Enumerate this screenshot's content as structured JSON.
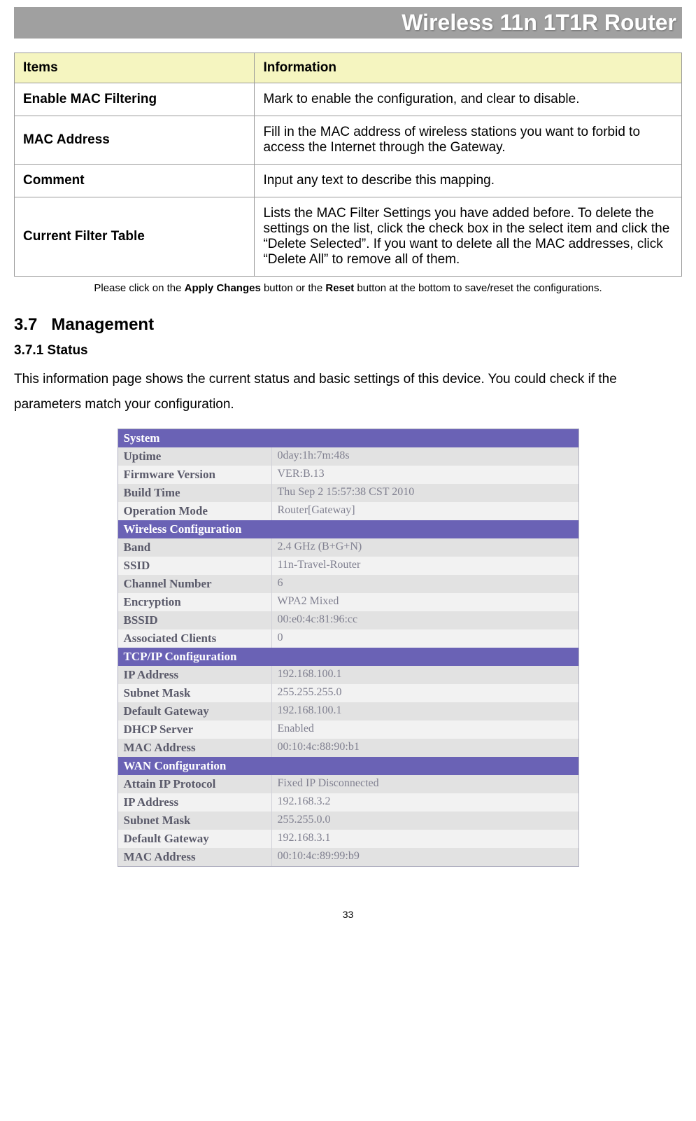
{
  "header": {
    "title": "Wireless 11n 1T1R Router"
  },
  "items_table": {
    "col_items": "Items",
    "col_info": "Information",
    "rows": [
      {
        "item": "Enable MAC Filtering",
        "info": "Mark to enable the configuration, and clear to disable."
      },
      {
        "item": "MAC Address",
        "info": "Fill in the MAC address of wireless stations you want to forbid to access the Internet through the Gateway."
      },
      {
        "item": "Comment",
        "info": "Input any text to describe this mapping."
      },
      {
        "item": "Current Filter Table",
        "info": "Lists the MAC Filter Settings you have added before. To delete the settings on the list, click the check box in the select item and click the “Delete Selected”. If you want to delete all the MAC addresses, click “Delete All” to remove all of them."
      }
    ]
  },
  "footer_note": {
    "pre": "Please click on the ",
    "b1": "Apply Changes",
    "mid": " button or the ",
    "b2": "Reset",
    "post": " button at the bottom to save/reset the configurations."
  },
  "sections": {
    "mgmt_num": "3.7",
    "mgmt_title": "Management",
    "status_num": "3.7.1",
    "status_title": "Status",
    "status_desc": "This information page shows the current status and basic settings of this device. You could check if the parameters match your configuration."
  },
  "status_panel": {
    "groups": [
      {
        "header": "System",
        "rows": [
          {
            "label": "Uptime",
            "value": "0day:1h:7m:48s"
          },
          {
            "label": "Firmware Version",
            "value": "VER:B.13"
          },
          {
            "label": "Build Time",
            "value": "Thu Sep 2 15:57:38 CST 2010"
          },
          {
            "label": "Operation Mode",
            "value": "Router[Gateway]"
          }
        ]
      },
      {
        "header": "Wireless Configuration",
        "rows": [
          {
            "label": "Band",
            "value": "2.4 GHz (B+G+N)"
          },
          {
            "label": "SSID",
            "value": "11n-Travel-Router"
          },
          {
            "label": "Channel Number",
            "value": "6"
          },
          {
            "label": "Encryption",
            "value": "WPA2 Mixed"
          },
          {
            "label": "BSSID",
            "value": "00:e0:4c:81:96:cc"
          },
          {
            "label": "Associated Clients",
            "value": "0"
          }
        ]
      },
      {
        "header": "TCP/IP Configuration",
        "rows": [
          {
            "label": "IP Address",
            "value": "192.168.100.1"
          },
          {
            "label": "Subnet Mask",
            "value": "255.255.255.0"
          },
          {
            "label": "Default Gateway",
            "value": "192.168.100.1"
          },
          {
            "label": "DHCP Server",
            "value": "Enabled"
          },
          {
            "label": "MAC Address",
            "value": "00:10:4c:88:90:b1"
          }
        ]
      },
      {
        "header": "WAN Configuration",
        "rows": [
          {
            "label": "Attain IP Protocol",
            "value": "Fixed IP Disconnected"
          },
          {
            "label": "IP Address",
            "value": "192.168.3.2"
          },
          {
            "label": "Subnet Mask",
            "value": "255.255.0.0"
          },
          {
            "label": "Default Gateway",
            "value": "192.168.3.1"
          },
          {
            "label": "MAC Address",
            "value": "00:10:4c:89:99:b9"
          }
        ]
      }
    ]
  },
  "page_number": "33",
  "colors": {
    "banner_bg": "#a0a0a0",
    "banner_fg": "#ffffff",
    "table_header_bg": "#f5f5c0",
    "border": "#999999",
    "status_hdr_bg": "#6a62b5",
    "status_even": "#e2e2e2",
    "status_odd": "#f2f2f2",
    "status_label": "#5a5a6a",
    "status_value": "#808090"
  }
}
